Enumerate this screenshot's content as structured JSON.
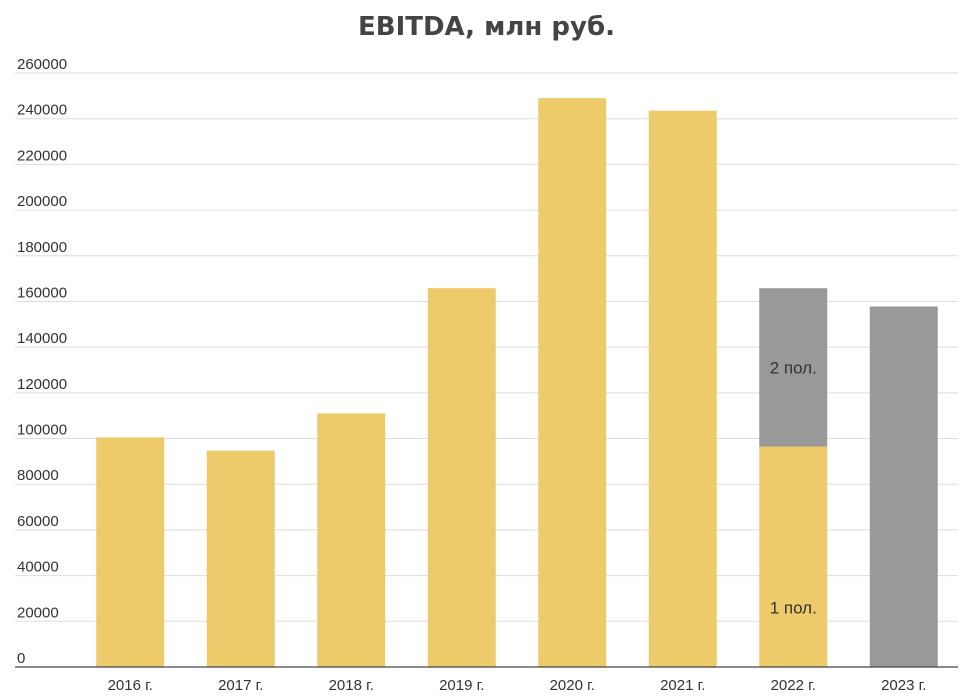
{
  "chart_data": {
    "type": "bar",
    "title": "EBITDA, млн руб.",
    "categories": [
      "2016 г.",
      "2017 г.",
      "2018 г.",
      "2019 г.",
      "2020 г.",
      "2021 г.",
      "2022 г.",
      "2023 г."
    ],
    "series": [
      {
        "name": "",
        "color": "#EDCA6A",
        "values": [
          100500,
          94700,
          111000,
          165800,
          249000,
          243500,
          96500,
          null
        ]
      },
      {
        "name": "",
        "color": "#999999",
        "values": [
          null,
          null,
          null,
          null,
          null,
          null,
          69300,
          157800
        ]
      }
    ],
    "segment_labels": [
      {
        "category": "2022 г.",
        "series": 1,
        "text": "1 пол."
      },
      {
        "category": "2022 г.",
        "series": 2,
        "text": "2 пол."
      }
    ],
    "ylim": [
      0,
      260000
    ],
    "yticks": [
      0,
      20000,
      40000,
      60000,
      80000,
      100000,
      120000,
      140000,
      160000,
      180000,
      200000,
      220000,
      240000,
      260000
    ],
    "xlabel": "",
    "ylabel": "",
    "grid": true,
    "legend": "none"
  }
}
